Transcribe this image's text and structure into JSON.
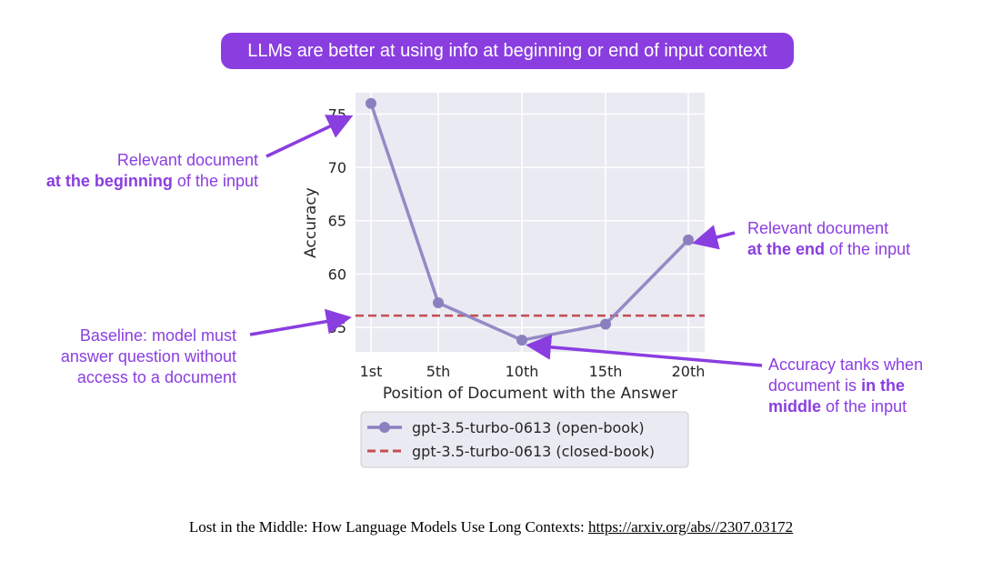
{
  "header": {
    "title": "LLMs are better at using info at beginning or end of input context"
  },
  "annotations": {
    "beginning": {
      "line1": "Relevant document",
      "bold": "at the beginning",
      "rest": " of the input"
    },
    "end": {
      "line1": "Relevant document",
      "bold": "at the end",
      "rest": " of the input"
    },
    "baseline": {
      "text": "Baseline: model must answer question without access to a document"
    },
    "middle": {
      "pre": "Accuracy tanks when document is ",
      "bold1": "in the",
      "bold2": "middle",
      "rest": " of the input"
    }
  },
  "caption": {
    "text": "Lost in the Middle: How Language Models Use Long Contexts: ",
    "link": "https://arxiv.org/abs//2307.03172"
  },
  "colors": {
    "accent": "#8a3ee0",
    "open_book": "#8c7fc0",
    "closed_book": "#c44e52",
    "plot_bg": "#eaeaf2"
  },
  "chart_data": {
    "type": "line",
    "title": "",
    "xlabel": "Position of Document with the Answer",
    "ylabel": "Accuracy",
    "categories": [
      "1st",
      "5th",
      "10th",
      "15th",
      "20th"
    ],
    "x": [
      1,
      5,
      10,
      15,
      20
    ],
    "ylim": [
      52.7,
      77
    ],
    "yticks": [
      55,
      60,
      65,
      70,
      75
    ],
    "grid": true,
    "legend_position": "below",
    "series": [
      {
        "name": "gpt-3.5-turbo-0613 (open-book)",
        "values": [
          76.0,
          57.3,
          53.8,
          55.3,
          63.2
        ],
        "style": "solid-marker"
      },
      {
        "name": "gpt-3.5-turbo-0613 (closed-book)",
        "values": [
          56.1,
          56.1,
          56.1,
          56.1,
          56.1
        ],
        "style": "dashed"
      }
    ]
  }
}
